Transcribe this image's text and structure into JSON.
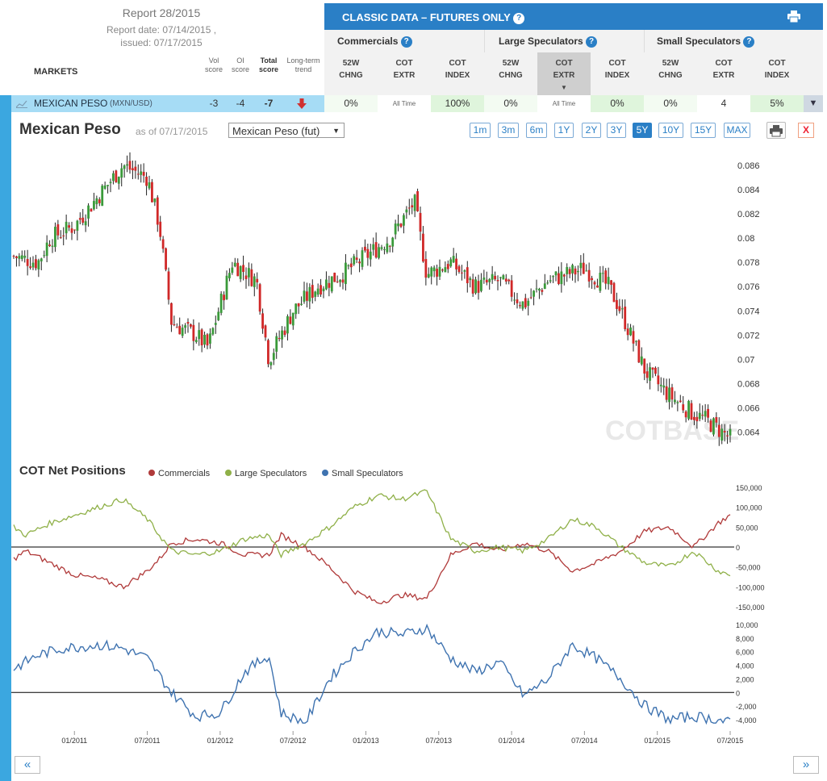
{
  "report": {
    "title": "Report 28/2015",
    "date": "Report date: 07/14/2015 ,",
    "issued": "issued: 07/17/2015",
    "markets_label": "MARKETS",
    "columns": [
      {
        "line1": "Vol",
        "line2": "score"
      },
      {
        "line1": "OI",
        "line2": "score"
      },
      {
        "line1": "Total",
        "line2": "score"
      },
      {
        "line1": "Long-term",
        "line2": "trend"
      }
    ]
  },
  "classic": {
    "title": "CLASSIC DATA – FUTURES ONLY",
    "groups": [
      "Commercials",
      "Large Speculators",
      "Small Speculators"
    ],
    "subheaders": [
      {
        "line1": "52W",
        "line2": "CHNG"
      },
      {
        "line1": "COT",
        "line2": "EXTR"
      },
      {
        "line1": "COT",
        "line2": "INDEX"
      },
      {
        "line1": "52W",
        "line2": "CHNG"
      },
      {
        "line1": "COT",
        "line2": "EXTR"
      },
      {
        "line1": "COT",
        "line2": "INDEX"
      },
      {
        "line1": "52W",
        "line2": "CHNG"
      },
      {
        "line1": "COT",
        "line2": "EXTR"
      },
      {
        "line1": "COT",
        "line2": "INDEX"
      }
    ]
  },
  "market": {
    "name": "MEXICAN PESO",
    "unit": "(MXN/USD)",
    "vol_score": "-3",
    "oi_score": "-4",
    "total_score": "-7",
    "trend": "down",
    "cells": [
      "0%",
      "All Time",
      "100%",
      "0%",
      "All Time",
      "0%",
      "0%",
      "4",
      "5%"
    ]
  },
  "chart": {
    "title": "Mexican Peso",
    "as_of": "as of 07/17/2015",
    "contract": "Mexican Peso (fut)",
    "ranges": [
      "1m",
      "3m",
      "6m",
      "1Y",
      "2Y",
      "3Y",
      "5Y",
      "10Y",
      "15Y",
      "MAX"
    ],
    "active_range": "5Y",
    "close_label": "X",
    "watermark": "COTBASE",
    "cot_title": "COT Net Positions",
    "nav_prev": "«",
    "nav_next": "»"
  },
  "colors": {
    "commercials": "#b03a3a",
    "large_specs": "#8fb048",
    "small_specs": "#3f73b0",
    "up_candle": "#3a9a3a",
    "down_candle": "#d02828",
    "accent": "#2a7fc6"
  },
  "chart_data": [
    {
      "type": "candlestick",
      "title": "Mexican Peso",
      "y_ticks": [
        "0.086",
        "0.084",
        "0.082",
        "0.08",
        "0.078",
        "0.076",
        "0.074",
        "0.072",
        "0.07",
        "0.068",
        "0.066",
        "0.064"
      ],
      "ylim": [
        0.0627,
        0.087
      ],
      "x_ticks": [
        "01/2011",
        "07/2011",
        "01/2012",
        "07/2012",
        "01/2013",
        "07/2013",
        "01/2014",
        "07/2014",
        "01/2015",
        "07/2015"
      ],
      "x_range": [
        "2010-08",
        "2015-07"
      ],
      "close_anchors": [
        [
          "2010-08",
          0.0785
        ],
        [
          "2010-10",
          0.078
        ],
        [
          "2010-11",
          0.08
        ],
        [
          "2011-01",
          0.081
        ],
        [
          "2011-03",
          0.0835
        ],
        [
          "2011-05",
          0.086
        ],
        [
          "2011-07",
          0.085
        ],
        [
          "2011-08",
          0.081
        ],
        [
          "2011-09",
          0.073
        ],
        [
          "2011-11",
          0.072
        ],
        [
          "2011-12",
          0.071
        ],
        [
          "2012-02",
          0.078
        ],
        [
          "2012-04",
          0.0765
        ],
        [
          "2012-05",
          0.07
        ],
        [
          "2012-07",
          0.074
        ],
        [
          "2012-09",
          0.076
        ],
        [
          "2012-11",
          0.077
        ],
        [
          "2013-01",
          0.0785
        ],
        [
          "2013-03",
          0.08
        ],
        [
          "2013-05",
          0.083
        ],
        [
          "2013-06",
          0.077
        ],
        [
          "2013-08",
          0.078
        ],
        [
          "2013-10",
          0.076
        ],
        [
          "2013-12",
          0.0765
        ],
        [
          "2014-02",
          0.0745
        ],
        [
          "2014-04",
          0.0765
        ],
        [
          "2014-07",
          0.0775
        ],
        [
          "2014-09",
          0.076
        ],
        [
          "2014-10",
          0.074
        ],
        [
          "2014-12",
          0.069
        ],
        [
          "2015-02",
          0.067
        ],
        [
          "2015-04",
          0.0655
        ],
        [
          "2015-05",
          0.065
        ],
        [
          "2015-07",
          0.0635
        ]
      ]
    },
    {
      "type": "line",
      "title": "COT Net Positions",
      "series": [
        {
          "name": "Commercials",
          "values_anchor": [
            [
              "2010-08",
              -30000
            ],
            [
              "2010-09",
              -10000
            ],
            [
              "2010-11",
              -40000
            ],
            [
              "2011-01",
              -70000
            ],
            [
              "2011-03",
              -80000
            ],
            [
              "2011-05",
              -100000
            ],
            [
              "2011-07",
              -60000
            ],
            [
              "2011-08",
              -30000
            ],
            [
              "2011-09",
              10000
            ],
            [
              "2011-11",
              20000
            ],
            [
              "2012-01",
              10000
            ],
            [
              "2012-03",
              -20000
            ],
            [
              "2012-05",
              -20000
            ],
            [
              "2012-06",
              30000
            ],
            [
              "2012-08",
              0
            ],
            [
              "2012-10",
              -50000
            ],
            [
              "2012-12",
              -110000
            ],
            [
              "2013-02",
              -140000
            ],
            [
              "2013-04",
              -120000
            ],
            [
              "2013-06",
              -130000
            ],
            [
              "2013-08",
              -20000
            ],
            [
              "2013-10",
              10000
            ],
            [
              "2013-12",
              -10000
            ],
            [
              "2014-02",
              10000
            ],
            [
              "2014-04",
              -10000
            ],
            [
              "2014-06",
              -60000
            ],
            [
              "2014-08",
              -40000
            ],
            [
              "2014-10",
              -10000
            ],
            [
              "2014-12",
              40000
            ],
            [
              "2015-02",
              50000
            ],
            [
              "2015-04",
              0
            ],
            [
              "2015-06",
              60000
            ],
            [
              "2015-07",
              80000
            ]
          ]
        },
        {
          "name": "Large Speculators",
          "values_anchor": [
            [
              "2010-08",
              50000
            ],
            [
              "2010-09",
              30000
            ],
            [
              "2010-11",
              60000
            ],
            [
              "2011-01",
              80000
            ],
            [
              "2011-03",
              100000
            ],
            [
              "2011-05",
              120000
            ],
            [
              "2011-07",
              70000
            ],
            [
              "2011-08",
              30000
            ],
            [
              "2011-09",
              -10000
            ],
            [
              "2011-11",
              -20000
            ],
            [
              "2012-01",
              -10000
            ],
            [
              "2012-03",
              20000
            ],
            [
              "2012-05",
              30000
            ],
            [
              "2012-06",
              -20000
            ],
            [
              "2012-08",
              10000
            ],
            [
              "2012-10",
              50000
            ],
            [
              "2012-12",
              100000
            ],
            [
              "2013-02",
              130000
            ],
            [
              "2013-04",
              120000
            ],
            [
              "2013-06",
              140000
            ],
            [
              "2013-08",
              20000
            ],
            [
              "2013-10",
              -10000
            ],
            [
              "2013-12",
              0
            ],
            [
              "2014-02",
              -10000
            ],
            [
              "2014-04",
              20000
            ],
            [
              "2014-06",
              70000
            ],
            [
              "2014-08",
              50000
            ],
            [
              "2014-10",
              0
            ],
            [
              "2014-12",
              -40000
            ],
            [
              "2015-02",
              -50000
            ],
            [
              "2015-04",
              -10000
            ],
            [
              "2015-06",
              -60000
            ],
            [
              "2015-07",
              -70000
            ]
          ]
        },
        {
          "name": "Small Speculators",
          "values_anchor": [
            [
              "2010-08",
              3500
            ],
            [
              "2010-10",
              5500
            ],
            [
              "2010-12",
              6500
            ],
            [
              "2011-03",
              7000
            ],
            [
              "2011-05",
              6500
            ],
            [
              "2011-07",
              5000
            ],
            [
              "2011-09",
              0
            ],
            [
              "2011-11",
              -3500
            ],
            [
              "2012-01",
              -3000
            ],
            [
              "2012-03",
              3000
            ],
            [
              "2012-05",
              5500
            ],
            [
              "2012-06",
              -3000
            ],
            [
              "2012-08",
              -4500
            ],
            [
              "2012-10",
              2000
            ],
            [
              "2012-12",
              6000
            ],
            [
              "2013-02",
              9000
            ],
            [
              "2013-04",
              8500
            ],
            [
              "2013-06",
              9500
            ],
            [
              "2013-08",
              5000
            ],
            [
              "2013-10",
              3000
            ],
            [
              "2013-12",
              4500
            ],
            [
              "2014-02",
              -500
            ],
            [
              "2014-04",
              2000
            ],
            [
              "2014-06",
              7000
            ],
            [
              "2014-08",
              5000
            ],
            [
              "2014-10",
              2000
            ],
            [
              "2014-12",
              -2000
            ],
            [
              "2015-02",
              -4000
            ],
            [
              "2015-04",
              -3500
            ],
            [
              "2015-06",
              -4000
            ],
            [
              "2015-07",
              -4500
            ]
          ]
        }
      ],
      "y_ticks_positions": [
        "150,000",
        "100,000",
        "50,000",
        "0",
        "-50,000",
        "-100,000",
        "-150,000"
      ],
      "y_ticks_small": [
        "10,000",
        "8,000",
        "6,000",
        "4,000",
        "2,000",
        "0",
        "-2,000",
        "-4,000"
      ]
    }
  ]
}
